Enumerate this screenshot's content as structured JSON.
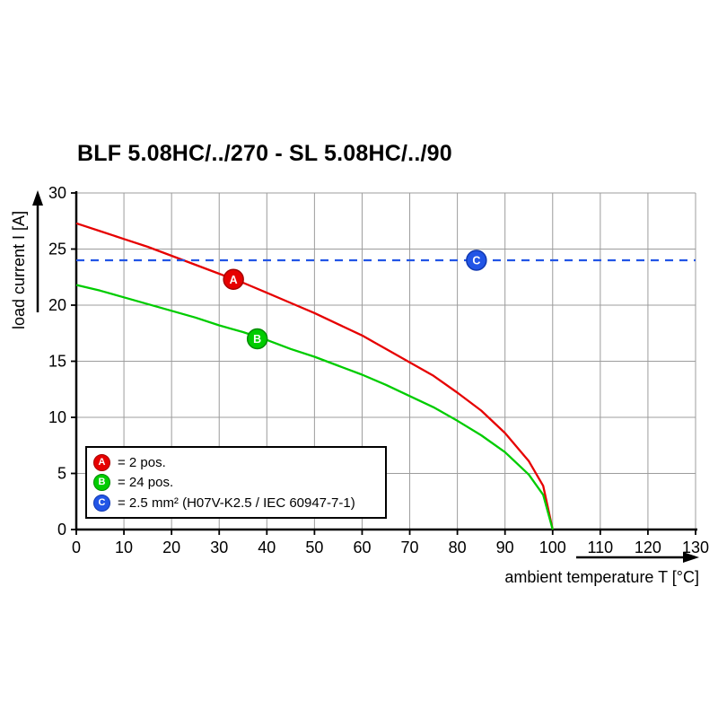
{
  "title": "BLF 5.08HC/../270 - SL 5.08HC/../90",
  "chart_data": {
    "type": "line",
    "title": "BLF 5.08HC/../270 - SL 5.08HC/../90",
    "xlabel": "ambient temperature T [°C]",
    "ylabel": "load current I [A]",
    "xlim": [
      0,
      130
    ],
    "ylim": [
      0,
      30
    ],
    "x_ticks": [
      0,
      10,
      20,
      30,
      40,
      50,
      60,
      70,
      80,
      90,
      100,
      110,
      120,
      130
    ],
    "y_ticks": [
      0,
      5,
      10,
      15,
      20,
      25,
      30
    ],
    "grid": true,
    "grid_color": "#9c9c9c",
    "axis_color": "#000000",
    "series": [
      {
        "name": "A",
        "label": "= 2 pos.",
        "color": "#e60000",
        "edge": "#a50000",
        "dashed": false,
        "marker": {
          "x": 33,
          "y": 22.3
        },
        "points": [
          [
            0,
            27.3
          ],
          [
            5,
            26.6
          ],
          [
            10,
            25.9
          ],
          [
            15,
            25.2
          ],
          [
            20,
            24.4
          ],
          [
            25,
            23.6
          ],
          [
            30,
            22.8
          ],
          [
            35,
            22.0
          ],
          [
            40,
            21.1
          ],
          [
            45,
            20.2
          ],
          [
            50,
            19.3
          ],
          [
            55,
            18.3
          ],
          [
            60,
            17.3
          ],
          [
            65,
            16.1
          ],
          [
            70,
            14.9
          ],
          [
            75,
            13.7
          ],
          [
            80,
            12.2
          ],
          [
            85,
            10.6
          ],
          [
            90,
            8.6
          ],
          [
            95,
            6.1
          ],
          [
            98,
            3.9
          ],
          [
            100,
            0
          ]
        ]
      },
      {
        "name": "B",
        "label": "= 24 pos.",
        "color": "#00cc00",
        "edge": "#008a00",
        "dashed": false,
        "marker": {
          "x": 38,
          "y": 17
        },
        "points": [
          [
            0,
            21.8
          ],
          [
            5,
            21.3
          ],
          [
            10,
            20.7
          ],
          [
            15,
            20.1
          ],
          [
            20,
            19.5
          ],
          [
            25,
            18.9
          ],
          [
            30,
            18.2
          ],
          [
            35,
            17.6
          ],
          [
            40,
            16.9
          ],
          [
            45,
            16.1
          ],
          [
            50,
            15.4
          ],
          [
            55,
            14.6
          ],
          [
            60,
            13.8
          ],
          [
            65,
            12.9
          ],
          [
            70,
            11.9
          ],
          [
            75,
            10.9
          ],
          [
            80,
            9.7
          ],
          [
            85,
            8.4
          ],
          [
            90,
            6.9
          ],
          [
            95,
            4.9
          ],
          [
            98,
            3.1
          ],
          [
            100,
            0
          ]
        ]
      },
      {
        "name": "C",
        "label": "= 2.5 mm² (H07V-K2.5 / IEC 60947-7-1)",
        "color": "#2255e6",
        "edge": "#1038b0",
        "dashed": true,
        "marker": {
          "x": 84,
          "y": 24
        },
        "points": [
          [
            0,
            24
          ],
          [
            130,
            24
          ]
        ]
      }
    ]
  }
}
